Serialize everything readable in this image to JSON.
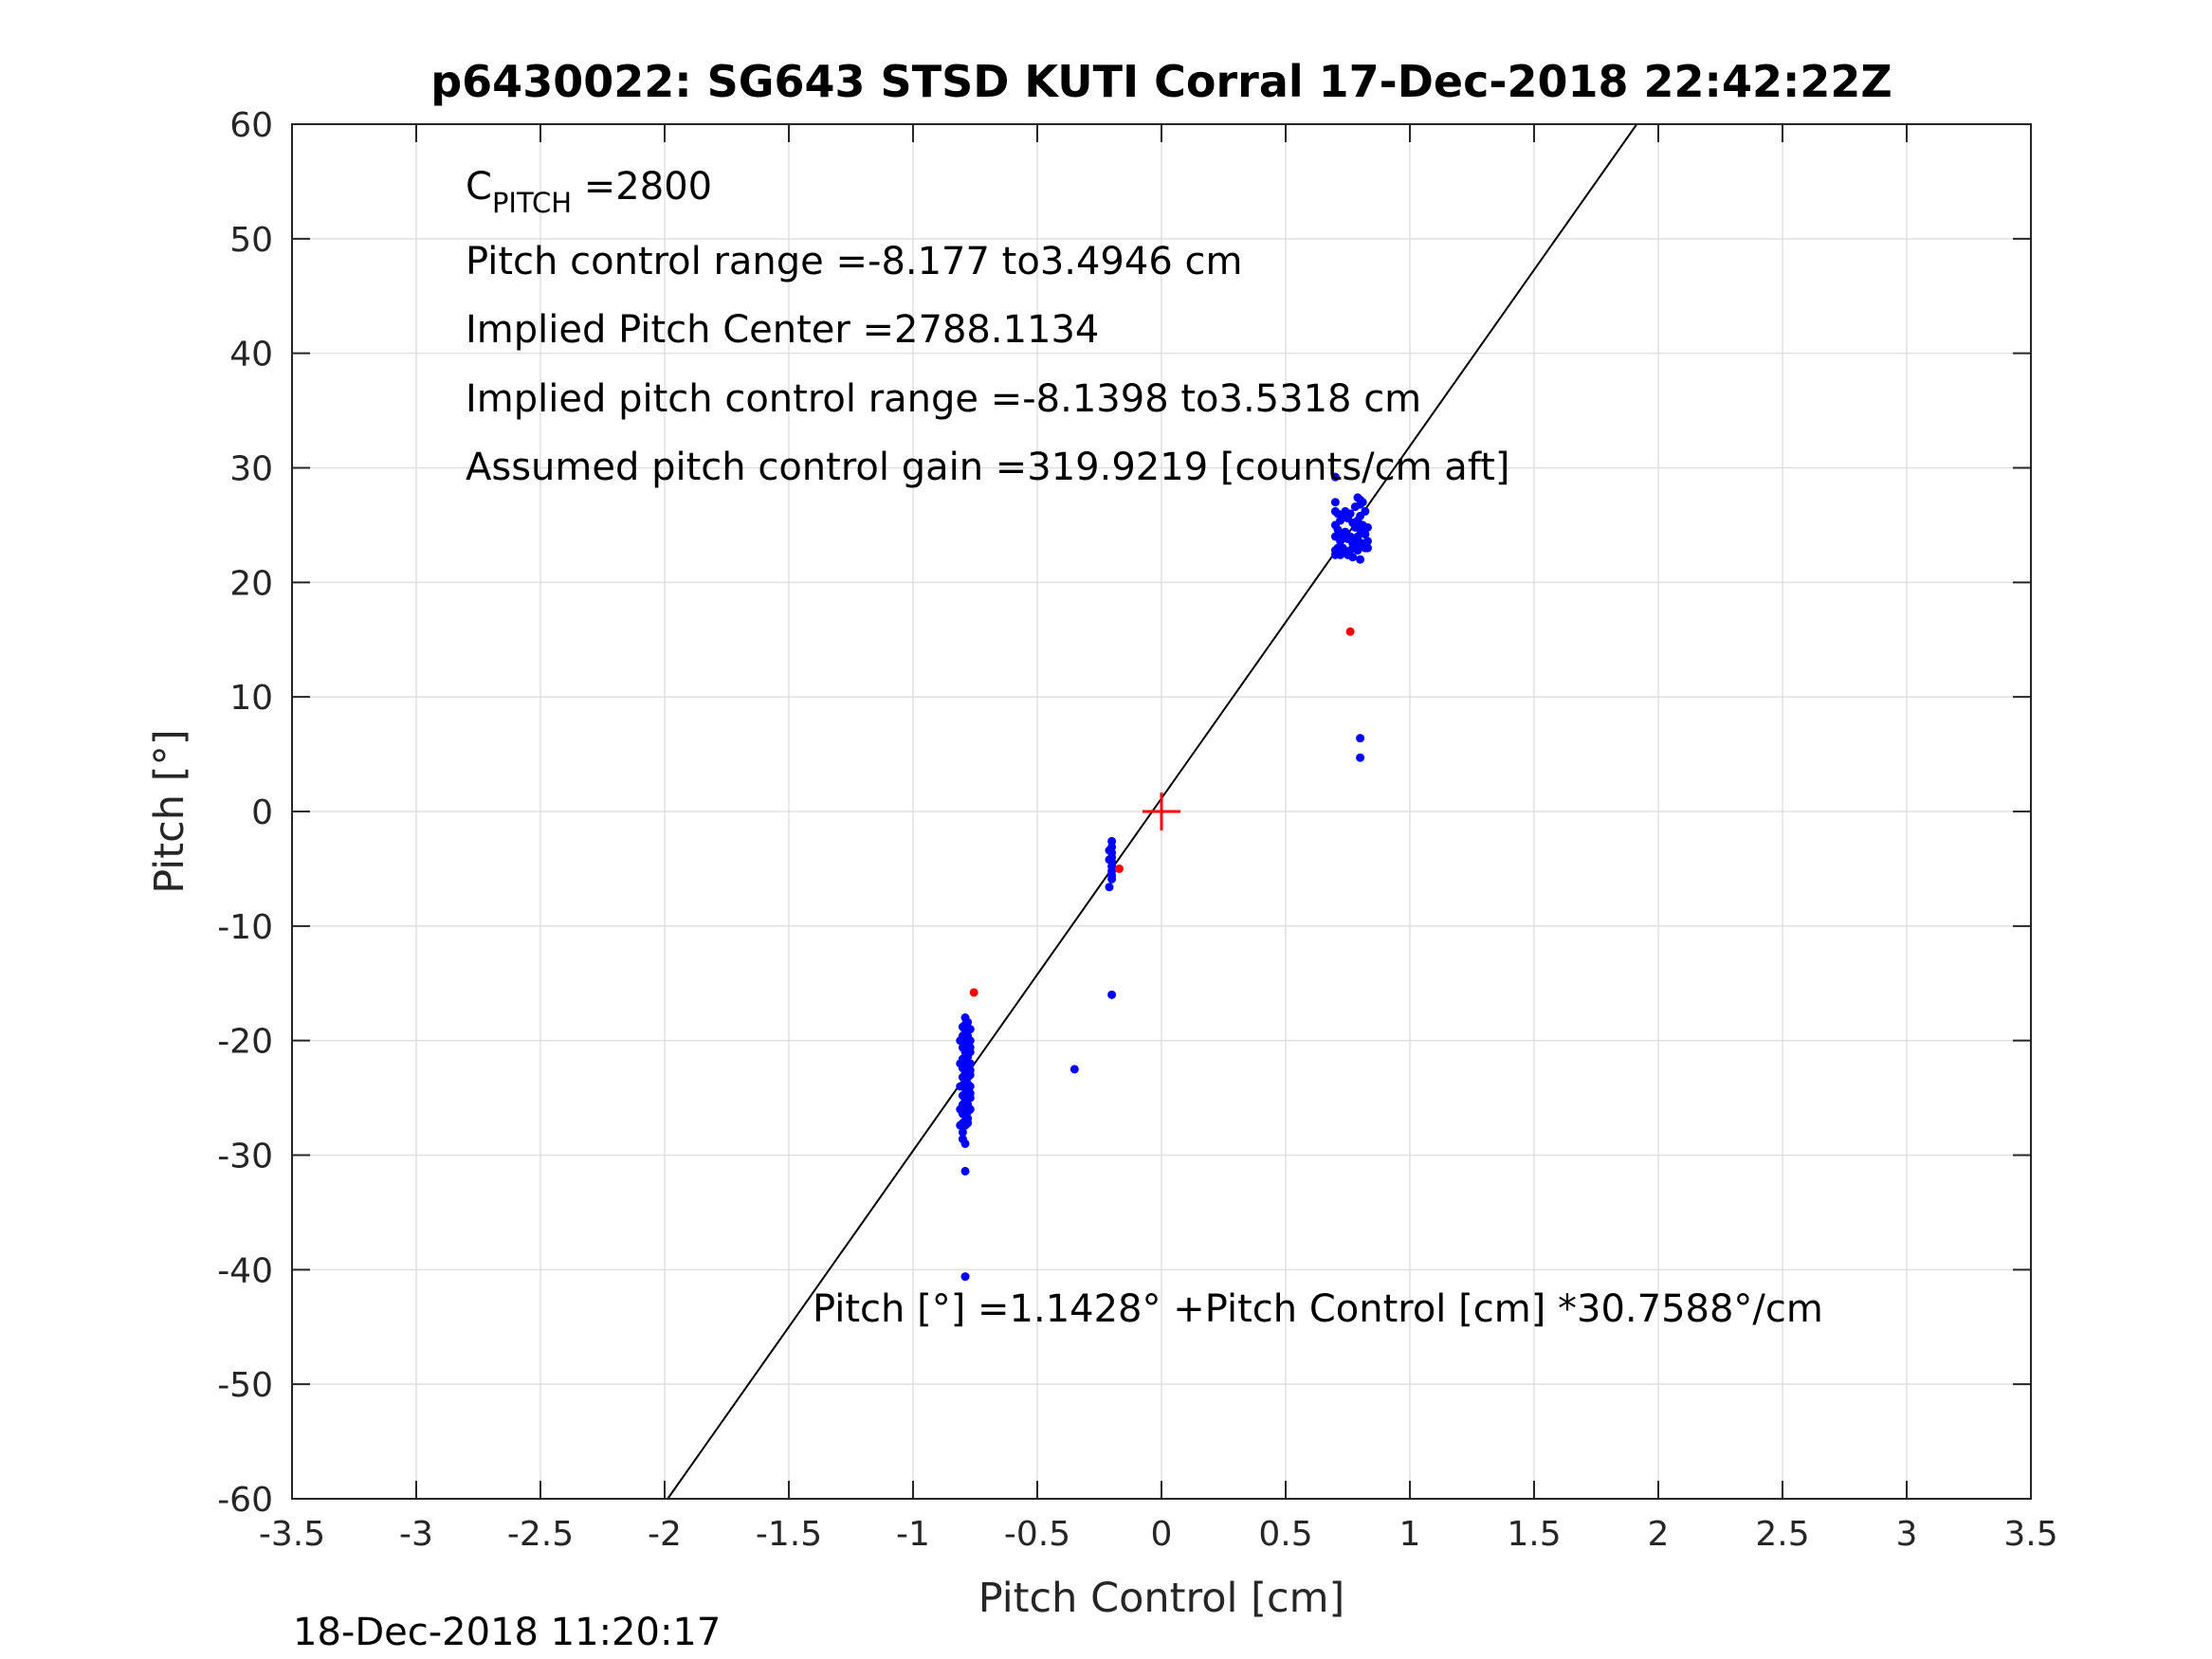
{
  "chart_data": {
    "type": "scatter",
    "title": "p6430022: SG643 STSD KUTI Corral 17-Dec-2018 22:42:22Z",
    "xlabel": "Pitch Control [cm]",
    "ylabel": "Pitch [°]",
    "xlim": [
      -3.5,
      3.5
    ],
    "ylim": [
      -60,
      60
    ],
    "grid": true,
    "x_ticks": [
      -3.5,
      -3,
      -2.5,
      -2,
      -1.5,
      -1,
      -0.5,
      0,
      0.5,
      1,
      1.5,
      2,
      2.5,
      3,
      3.5
    ],
    "y_ticks": [
      -60,
      -50,
      -40,
      -30,
      -20,
      -10,
      0,
      10,
      20,
      30,
      40,
      50,
      60
    ],
    "annotations": {
      "c_pitch_main": "C",
      "c_pitch_sub": "PITCH",
      "c_pitch_value": " =2800",
      "control_range": "Pitch control range =-8.177 to3.4946 cm",
      "implied_center": "Implied Pitch Center =2788.1134",
      "implied_range": "Implied pitch control range =-8.1398 to3.5318 cm",
      "assumed_gain": "Assumed pitch control gain =319.9219 [counts/cm aft]",
      "fit_equation": "Pitch [°] =1.1428° +Pitch Control [cm] *30.7588°/cm"
    },
    "fit_line": {
      "intercept": 1.1428,
      "slope": 30.7588,
      "color": "#000000"
    },
    "center_marker": {
      "x": 0,
      "y": 0,
      "color": "#ff0000",
      "shape": "plus"
    },
    "series": [
      {
        "color": "#0000ff",
        "x": [
          -0.79,
          -0.79,
          -0.79,
          -0.79,
          -0.79,
          -0.79,
          -0.79,
          -0.79,
          -0.79,
          -0.79,
          -0.79,
          -0.79,
          -0.79,
          -0.79,
          -0.79,
          -0.79,
          -0.79,
          -0.78,
          -0.78,
          -0.78,
          -0.78,
          -0.78,
          -0.78,
          -0.78,
          -0.78,
          -0.78,
          -0.78,
          -0.78,
          -0.78,
          -0.78,
          -0.78,
          -0.78,
          -0.78,
          -0.8,
          -0.8,
          -0.8,
          -0.8,
          -0.8,
          -0.8,
          -0.8,
          -0.8,
          -0.8,
          -0.8,
          -0.8,
          -0.8,
          -0.8,
          -0.77,
          -0.77,
          -0.77,
          -0.77,
          -0.77,
          -0.77,
          -0.77,
          -0.77,
          -0.77,
          -0.77,
          -0.77,
          -0.81,
          -0.81,
          -0.81,
          -0.81,
          -0.81,
          -0.79,
          -0.79,
          -0.79,
          -0.79,
          -0.79,
          -0.79,
          -0.35,
          -0.2,
          -0.2,
          -0.2,
          -0.2,
          -0.2,
          -0.2,
          -0.2,
          -0.2,
          -0.21,
          -0.21,
          -0.21,
          -0.2,
          -0.2,
          0.7,
          0.7,
          0.7,
          0.7,
          0.7,
          0.71,
          0.71,
          0.71,
          0.72,
          0.72,
          0.72,
          0.73,
          0.73,
          0.73,
          0.74,
          0.74,
          0.74,
          0.75,
          0.75,
          0.75,
          0.76,
          0.76,
          0.76,
          0.77,
          0.77,
          0.77,
          0.78,
          0.78,
          0.78,
          0.79,
          0.79,
          0.79,
          0.8,
          0.8,
          0.8,
          0.81,
          0.81,
          0.81,
          0.82,
          0.82,
          0.82,
          0.83,
          0.83,
          0.83,
          0.8,
          0.8,
          0.79,
          0.79,
          0.8,
          0.7,
          0.7,
          0.8,
          0.79
        ],
        "y": [
          -18.0,
          -18.6,
          -19.2,
          -19.8,
          -20.4,
          -21.0,
          -21.6,
          -22.2,
          -22.8,
          -23.4,
          -24.0,
          -24.6,
          -25.2,
          -25.8,
          -26.4,
          -27.0,
          -27.4,
          -18.4,
          -19.0,
          -19.6,
          -20.2,
          -20.8,
          -21.4,
          -22.0,
          -22.6,
          -23.2,
          -23.8,
          -24.4,
          -25.0,
          -25.6,
          -26.2,
          -26.8,
          -27.2,
          -18.8,
          -19.6,
          -20.6,
          -21.6,
          -22.4,
          -23.2,
          -24.0,
          -24.8,
          -25.6,
          -26.4,
          -27.2,
          -28.0,
          -28.6,
          -19.0,
          -20.0,
          -21.0,
          -22.0,
          -23.0,
          -24.0,
          -25.0,
          -26.0,
          -20.6,
          -22.6,
          -24.6,
          -20.0,
          -22.0,
          -24.0,
          -26.0,
          -27.4,
          -29.0,
          -31.4,
          -40.6,
          -25.0,
          -23.5,
          -21.5,
          -22.5,
          -2.6,
          -3.1,
          -3.6,
          -4.0,
          -4.4,
          -4.8,
          -5.2,
          -5.6,
          -3.4,
          -4.2,
          -6.6,
          -5.9,
          -16.0,
          29.2,
          27.0,
          25.0,
          24.0,
          22.8,
          26.0,
          24.6,
          23.0,
          25.4,
          23.6,
          22.4,
          25.8,
          24.2,
          23.0,
          26.2,
          24.4,
          22.6,
          25.6,
          23.8,
          22.4,
          26.0,
          24.0,
          22.8,
          25.2,
          23.4,
          22.2,
          26.6,
          24.8,
          23.0,
          27.4,
          25.4,
          22.8,
          26.8,
          24.6,
          22.0,
          27.0,
          25.0,
          23.4,
          26.2,
          24.2,
          23.0,
          24.8,
          23.6,
          23.0,
          6.4,
          4.7,
          24.0,
          23.2,
          25.8,
          26.2,
          22.4,
          27.2,
          23.8
        ]
      },
      {
        "color": "#ff0000",
        "x": [
          -0.755,
          -0.17,
          0.76
        ],
        "y": [
          -15.8,
          -5.0,
          15.7
        ]
      }
    ]
  },
  "footer": {
    "timestamp": "18-Dec-2018 11:20:17"
  }
}
